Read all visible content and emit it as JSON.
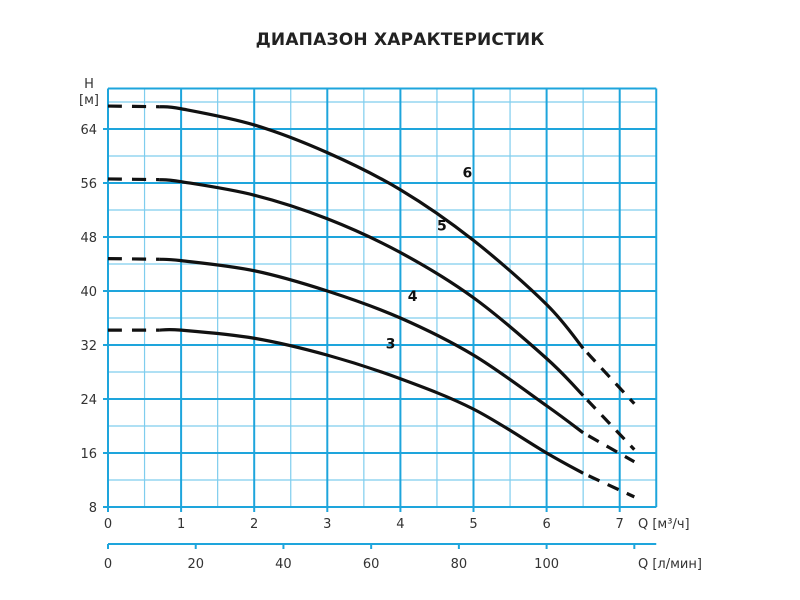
{
  "title": "ДИАПАЗОН ХАРАКТЕРИСТИК",
  "colors": {
    "grid": "#1ea5dc",
    "grid_minor": "#7fcdee",
    "curve": "#111111"
  },
  "chart_data": {
    "type": "line",
    "title": "ДИАПАЗОН ХАРАКТЕРИСТИК",
    "xlabel": "Q [м³/ч]",
    "xlabel_secondary": "Q [л/мин]",
    "ylabel": "H [м]",
    "ylabel_top": "H",
    "ylabel_unit": "[м]",
    "xlim": [
      0,
      7.5
    ],
    "ylim": [
      8,
      70
    ],
    "x_ticks": [
      0,
      1,
      2,
      3,
      4,
      5,
      6,
      7
    ],
    "x_secondary_ticks": [
      0,
      20,
      40,
      60,
      80,
      100
    ],
    "y_ticks": [
      8,
      16,
      24,
      32,
      40,
      48,
      56,
      64
    ],
    "grid": true,
    "grid_minor": {
      "x_step": 0.5,
      "y_step": 4
    },
    "series": [
      {
        "name": "3",
        "dashed_until": 0.7,
        "dashed_from": 6.5,
        "x": [
          0,
          0.7,
          1,
          2,
          3,
          4,
          5,
          6,
          6.5,
          7.2
        ],
        "y": [
          34.2,
          34.2,
          34.2,
          33,
          30.5,
          27,
          22.5,
          16,
          13,
          9.5
        ]
      },
      {
        "name": "4",
        "dashed_until": 0.7,
        "dashed_from": 6.5,
        "x": [
          0,
          0.7,
          1,
          2,
          3,
          4,
          5,
          6,
          6.5,
          7.2
        ],
        "y": [
          44.8,
          44.7,
          44.5,
          43,
          40,
          36,
          30.5,
          23,
          19,
          14.7
        ]
      },
      {
        "name": "5",
        "dashed_until": 0.7,
        "dashed_from": 6.5,
        "x": [
          0,
          0.7,
          1,
          2,
          3,
          4,
          5,
          6,
          6.5,
          7.2
        ],
        "y": [
          56.6,
          56.5,
          56.2,
          54.2,
          50.7,
          45.7,
          39,
          30,
          24.5,
          16.5
        ]
      },
      {
        "name": "6",
        "dashed_until": 0.7,
        "dashed_from": 6.5,
        "x": [
          0,
          0.7,
          1,
          2,
          3,
          4,
          5,
          6,
          6.5,
          7.2
        ],
        "y": [
          67.4,
          67.3,
          67,
          64.6,
          60.5,
          55,
          47.5,
          38,
          31.5,
          23.3
        ]
      }
    ],
    "label_positions": [
      {
        "name": "3",
        "x": 3.8,
        "y": 31.5
      },
      {
        "name": "4",
        "x": 4.1,
        "y": 38.5
      },
      {
        "name": "5",
        "x": 4.5,
        "y": 49
      },
      {
        "name": "6",
        "x": 4.85,
        "y": 56.8
      }
    ]
  }
}
